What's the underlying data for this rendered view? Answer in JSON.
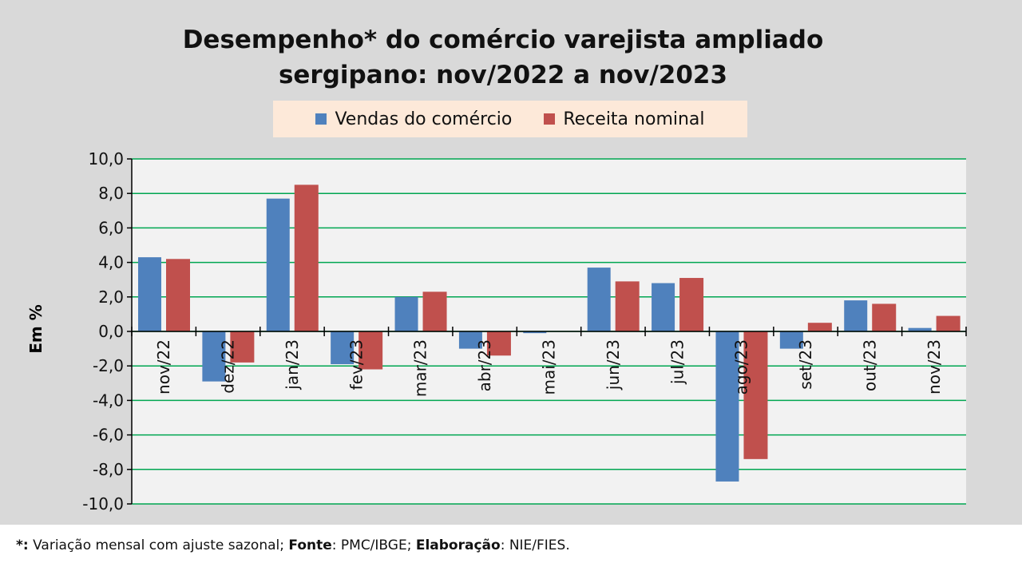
{
  "chart_data": {
    "type": "bar",
    "title_line1": "Desempenho* do comércio varejista ampliado",
    "title_line2": "sergipano: nov/2022 a nov/2023",
    "ylabel": "Em %",
    "ylim": [
      -10,
      10
    ],
    "yticks": [
      "-10,0",
      "-8,0",
      "-6,0",
      "-4,0",
      "-2,0",
      "0,0",
      "2,0",
      "4,0",
      "6,0",
      "8,0",
      "10,0"
    ],
    "ytick_values": [
      -10,
      -8,
      -6,
      -4,
      -2,
      0,
      2,
      4,
      6,
      8,
      10
    ],
    "grid": true,
    "legend_position": "top-center",
    "categories": [
      "nov/22",
      "dez/22",
      "jan/23",
      "fev/23",
      "mar/23",
      "abr/23",
      "mai/23",
      "jun/23",
      "jul/23",
      "ago/23",
      "set/23",
      "out/23",
      "nov/23"
    ],
    "series": [
      {
        "name": "Vendas do comércio",
        "color": "#4f81bd",
        "values": [
          4.3,
          -2.9,
          7.7,
          -1.9,
          2.0,
          -1.0,
          -0.1,
          3.7,
          2.8,
          -8.7,
          -1.0,
          1.8,
          0.2
        ]
      },
      {
        "name": "Receita nominal",
        "color": "#c0504d",
        "values": [
          4.2,
          -1.8,
          8.5,
          -2.2,
          2.3,
          -1.4,
          0.0,
          2.9,
          3.1,
          -7.4,
          0.5,
          1.6,
          0.9
        ]
      }
    ]
  },
  "footer": {
    "star": "*:",
    "text1": " Variação mensal com ajuste sazonal; ",
    "fonte_label": "Fonte",
    "text2": ": PMC/IBGE; ",
    "elab_label": "Elaboração",
    "text3": ": NIE/FIES."
  }
}
